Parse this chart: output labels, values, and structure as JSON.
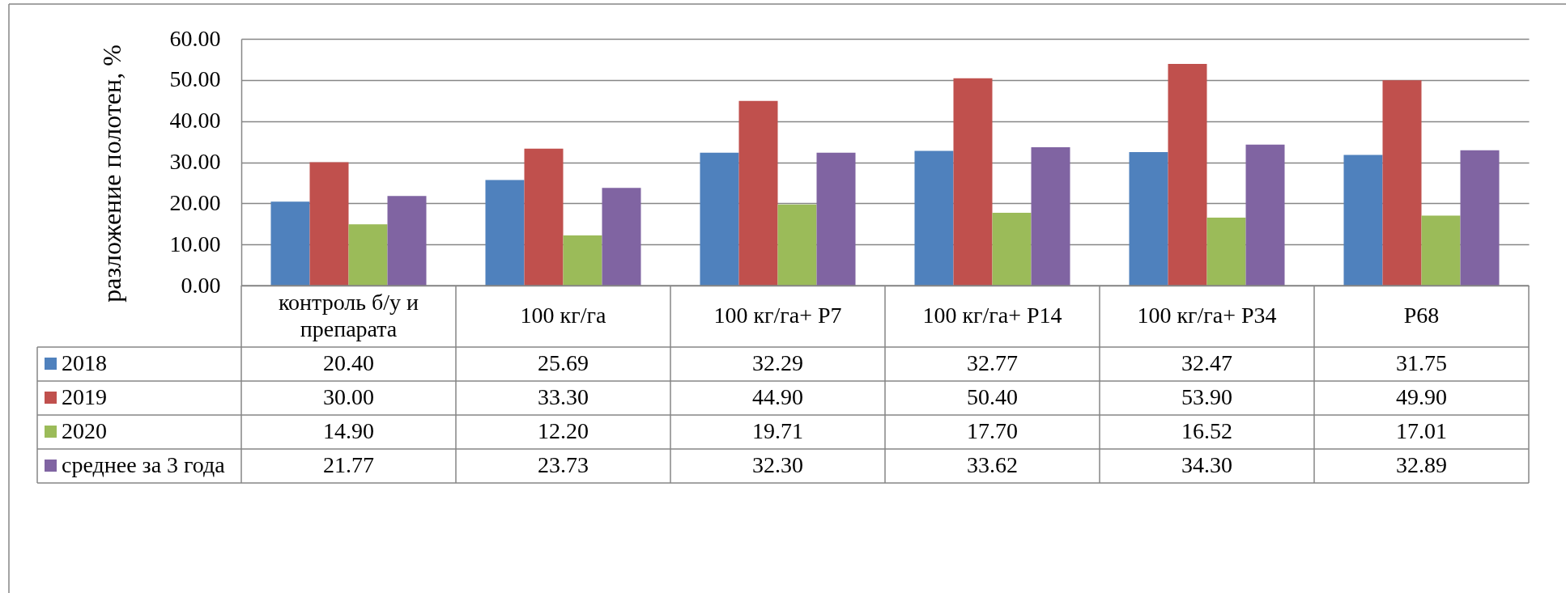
{
  "chart_data": {
    "type": "bar",
    "ylabel": "разложение полотен, %",
    "categories": [
      "контроль б/у и препарата",
      "100 кг/га",
      "100 кг/га+ P7",
      "100 кг/га+ P14",
      "100 кг/га+ P34",
      "P68"
    ],
    "series": [
      {
        "name": "2018",
        "color": "#4f81bd",
        "values": [
          20.4,
          25.69,
          32.29,
          32.77,
          32.47,
          31.75
        ],
        "value_labels": [
          "20.40",
          "25.69",
          "32.29",
          "32.77",
          "32.47",
          "31.75"
        ]
      },
      {
        "name": "2019",
        "color": "#c0504d",
        "values": [
          30.0,
          33.3,
          44.9,
          50.4,
          53.9,
          49.9
        ],
        "value_labels": [
          "30.00",
          "33.30",
          "44.90",
          "50.40",
          "53.90",
          "49.90"
        ]
      },
      {
        "name": "2020",
        "color": "#9bbb59",
        "values": [
          14.9,
          12.2,
          19.71,
          17.7,
          16.52,
          17.01
        ],
        "value_labels": [
          "14.90",
          "12.20",
          "19.71",
          "17.70",
          "16.52",
          "17.01"
        ]
      },
      {
        "name": "среднее за 3 года",
        "color": "#8064a2",
        "values": [
          21.77,
          23.73,
          32.3,
          33.62,
          34.3,
          32.89
        ],
        "value_labels": [
          "21.77",
          "23.73",
          "32.30",
          "33.62",
          "34.30",
          "32.89"
        ]
      }
    ],
    "ylim": [
      0,
      60
    ],
    "yticks": [
      {
        "value": 0,
        "label": "0.00"
      },
      {
        "value": 10,
        "label": "10.00"
      },
      {
        "value": 20,
        "label": "20.00"
      },
      {
        "value": 30,
        "label": "30.00"
      },
      {
        "value": 40,
        "label": "40.00"
      },
      {
        "value": 50,
        "label": "50.00"
      },
      {
        "value": 60,
        "label": "60.00"
      }
    ],
    "grid": "y",
    "legend": "bottom"
  }
}
